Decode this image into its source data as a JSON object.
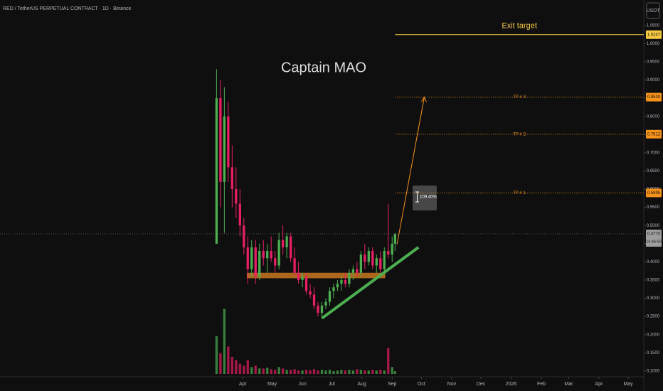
{
  "chart_data": {
    "type": "candlestick",
    "title": "RED / TetherUS PERPETUAL CONTRACT · 1D · Binance",
    "watermark": "Captain MAO",
    "currency": "USDT",
    "up_color": "#4caf50",
    "down_color": "#e91e63",
    "x": [
      0,
      4,
      8,
      12,
      16,
      20,
      24,
      28,
      32,
      36,
      40,
      44,
      48,
      52,
      56,
      60,
      64,
      68,
      72,
      76,
      80,
      84,
      88,
      92,
      96,
      100,
      104,
      108,
      112,
      116,
      120,
      124,
      128,
      132,
      136,
      140,
      144,
      148,
      152,
      156,
      160,
      164,
      168,
      172,
      176,
      180,
      183
    ],
    "open": [
      0.45,
      0.85,
      0.62,
      0.8,
      0.66,
      0.6,
      0.56,
      0.5,
      0.44,
      0.38,
      0.44,
      0.36,
      0.43,
      0.41,
      0.43,
      0.41,
      0.39,
      0.46,
      0.44,
      0.47,
      0.41,
      0.37,
      0.35,
      0.36,
      0.32,
      0.31,
      0.28,
      0.26,
      0.28,
      0.29,
      0.32,
      0.33,
      0.34,
      0.35,
      0.34,
      0.37,
      0.38,
      0.37,
      0.42,
      0.4,
      0.43,
      0.39,
      0.41,
      0.38,
      0.43,
      0.42,
      0.45
    ],
    "high": [
      0.93,
      0.9,
      0.88,
      0.84,
      0.72,
      0.66,
      0.6,
      0.52,
      0.47,
      0.46,
      0.46,
      0.45,
      0.46,
      0.45,
      0.47,
      0.43,
      0.48,
      0.5,
      0.48,
      0.48,
      0.44,
      0.4,
      0.37,
      0.37,
      0.34,
      0.33,
      0.29,
      0.29,
      0.3,
      0.33,
      0.34,
      0.35,
      0.36,
      0.37,
      0.38,
      0.39,
      0.4,
      0.43,
      0.45,
      0.44,
      0.44,
      0.42,
      0.43,
      0.44,
      0.56,
      0.47,
      0.48
    ],
    "low": [
      0.45,
      0.55,
      0.48,
      0.62,
      0.55,
      0.52,
      0.47,
      0.42,
      0.34,
      0.36,
      0.34,
      0.35,
      0.39,
      0.37,
      0.4,
      0.37,
      0.38,
      0.42,
      0.41,
      0.4,
      0.36,
      0.34,
      0.33,
      0.31,
      0.3,
      0.27,
      0.25,
      0.25,
      0.27,
      0.28,
      0.3,
      0.32,
      0.32,
      0.33,
      0.33,
      0.35,
      0.36,
      0.36,
      0.38,
      0.39,
      0.38,
      0.37,
      0.37,
      0.37,
      0.41,
      0.4,
      0.43
    ],
    "close": [
      0.85,
      0.62,
      0.8,
      0.66,
      0.6,
      0.56,
      0.5,
      0.44,
      0.38,
      0.44,
      0.36,
      0.43,
      0.41,
      0.43,
      0.41,
      0.39,
      0.46,
      0.44,
      0.47,
      0.41,
      0.37,
      0.35,
      0.36,
      0.32,
      0.31,
      0.28,
      0.26,
      0.28,
      0.29,
      0.32,
      0.33,
      0.34,
      0.35,
      0.34,
      0.37,
      0.38,
      0.37,
      0.42,
      0.4,
      0.43,
      0.39,
      0.41,
      0.38,
      0.43,
      0.42,
      0.45,
      0.477
    ],
    "volume": [
      55,
      30,
      95,
      40,
      25,
      20,
      15,
      12,
      20,
      10,
      12,
      8,
      8,
      9,
      7,
      6,
      10,
      8,
      6,
      6,
      7,
      5,
      5,
      6,
      5,
      7,
      5,
      6,
      5,
      6,
      4,
      5,
      6,
      5,
      6,
      5,
      7,
      6,
      5,
      5,
      6,
      5,
      6,
      5,
      38,
      10,
      4
    ],
    "vlim": [
      0,
      140
    ],
    "xlim": [
      -222,
      438
    ],
    "ylim": [
      0.045,
      1.12
    ],
    "xticks": [
      {
        "value": 27,
        "label": "Apr"
      },
      {
        "value": 57,
        "label": "May"
      },
      {
        "value": 88,
        "label": "Jun"
      },
      {
        "value": 118,
        "label": "Jul"
      },
      {
        "value": 149,
        "label": "Aug"
      },
      {
        "value": 180,
        "label": "Sep"
      },
      {
        "value": 210,
        "label": "Oct"
      },
      {
        "value": 241,
        "label": "Nov"
      },
      {
        "value": 271,
        "label": "Dec"
      },
      {
        "value": 302,
        "label": "2026"
      },
      {
        "value": 333,
        "label": "Feb"
      },
      {
        "value": 361,
        "label": "Mar"
      },
      {
        "value": 392,
        "label": "Apr"
      },
      {
        "value": 422,
        "label": "May"
      }
    ],
    "yticks": [
      {
        "value": 0.1,
        "label": "0.1000"
      },
      {
        "value": 0.15,
        "label": "0.1500"
      },
      {
        "value": 0.2,
        "label": "0.2000"
      },
      {
        "value": 0.25,
        "label": "0.2500"
      },
      {
        "value": 0.3,
        "label": "0.3000"
      },
      {
        "value": 0.35,
        "label": "0.3500"
      },
      {
        "value": 0.4,
        "label": "0.4000"
      },
      {
        "value": 0.45,
        "label": "0.4500"
      },
      {
        "value": 0.5,
        "label": "0.5000"
      },
      {
        "value": 0.55,
        "label": "0.5500"
      },
      {
        "value": 0.6,
        "label": "0.6000"
      },
      {
        "value": 0.65,
        "label": "0.6500"
      },
      {
        "value": 0.7,
        "label": "0.7000"
      },
      {
        "value": 0.75,
        "label": "0.7500"
      },
      {
        "value": 0.8,
        "label": "0.8000"
      },
      {
        "value": 0.85,
        "label": "0.8500"
      },
      {
        "value": 0.9,
        "label": "0.9000"
      },
      {
        "value": 0.95,
        "label": "0.9500"
      },
      {
        "value": 1.0,
        "label": "1.0000"
      },
      {
        "value": 1.05,
        "label": "1.0500"
      }
    ],
    "levels": [
      {
        "name": "Exit target",
        "value": 1.0247,
        "label": "1.0247",
        "start": 183,
        "color": "#f5c842",
        "style": "solid"
      },
      {
        "name": "TP # 3",
        "value": 0.853,
        "label": "0.8530",
        "start": 183,
        "color": "#f7931a",
        "style": "dotted"
      },
      {
        "name": "TP # 2",
        "value": 0.7512,
        "label": "0.7512",
        "start": 183,
        "color": "#f7931a",
        "style": "dotted"
      },
      {
        "name": "TP # 1",
        "value": 0.5895,
        "label": "0.5895",
        "start": 183,
        "color": "#f7931a",
        "style": "dotted"
      }
    ],
    "last_price": {
      "value": 0.477,
      "label": "0.4770",
      "countdown": "16:46:50"
    },
    "support_zone": {
      "x": [
        31,
        173
      ],
      "y": [
        0.355,
        0.37
      ],
      "color": "#c8771e"
    },
    "trendline": {
      "x": [
        108,
        207
      ],
      "y": [
        0.245,
        0.44
      ],
      "color": "#4caf50"
    },
    "projection": {
      "x": [
        185,
        213
      ],
      "y": [
        0.448,
        0.853
      ],
      "color": "#f7931a"
    },
    "measure": {
      "label": "109.40%"
    }
  }
}
